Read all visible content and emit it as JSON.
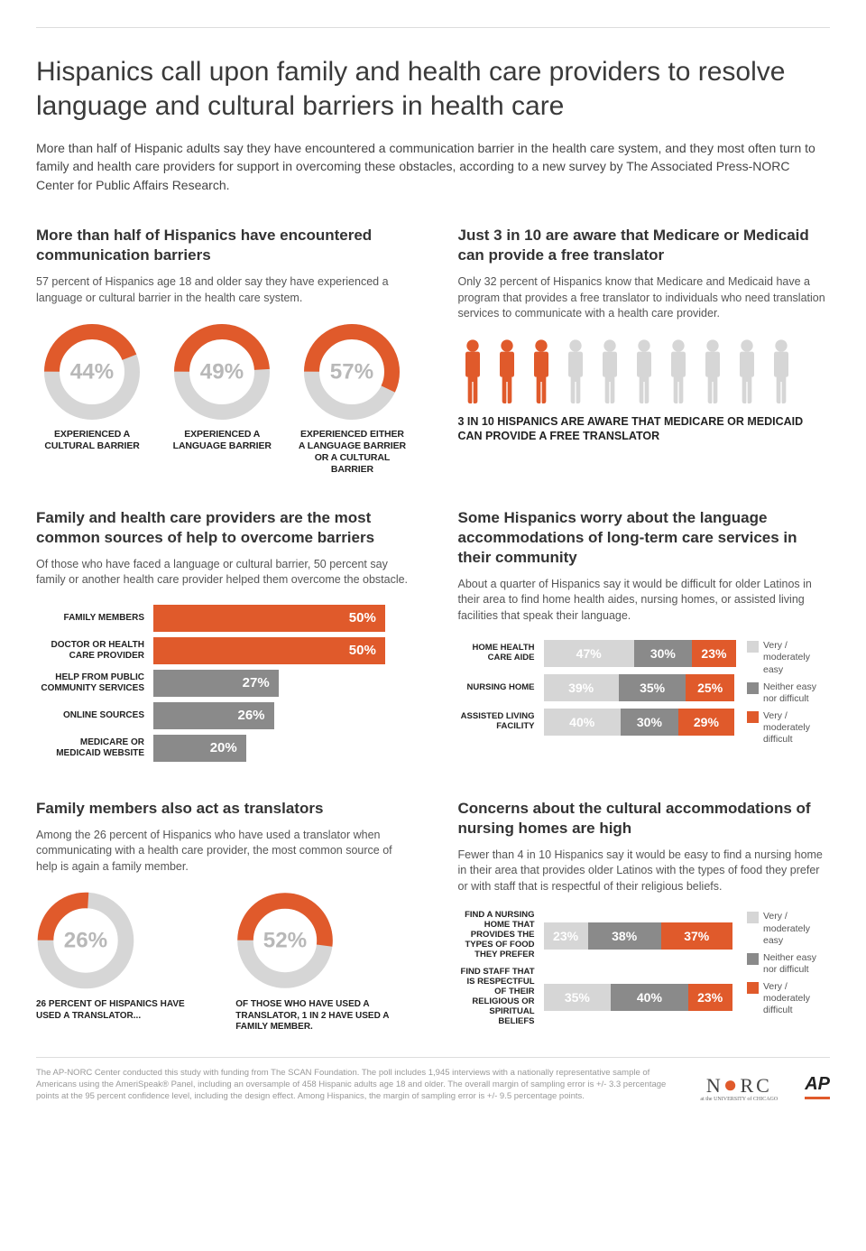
{
  "colors": {
    "orange": "#e05a2b",
    "gray_med": "#8a8a8a",
    "gray_light": "#d6d6d6",
    "donut_bg": "#d6d6d6",
    "text_pct": "#b8b8b8"
  },
  "title": "Hispanics call upon family and health care providers to resolve language and cultural barriers in health care",
  "intro": "More than half of Hispanic adults say they have encountered a communication barrier in the health care system, and they most often turn to family and health care providers for support in overcoming these obstacles, according to a new survey by The Associated Press-NORC Center for Public Affairs Research.",
  "s1": {
    "heading": "More than half of Hispanics have encountered communication barriers",
    "sub": "57 percent of Hispanics age 18 and older say they have experienced a language or cultural barrier in the health care system.",
    "donuts": [
      {
        "pct": 44,
        "label": "Experienced a cultural barrier"
      },
      {
        "pct": 49,
        "label": "Experienced a language barrier"
      },
      {
        "pct": 57,
        "label": "Experienced either a language barrier or a cultural barrier"
      }
    ]
  },
  "s2": {
    "heading": "Just 3 in 10 are aware that Medicare or Medicaid can provide a free translator",
    "sub": "Only 32 percent of Hispanics know that Medicare and Medicaid have a program that provides a free translator to individuals who need translation services to communicate with a health care provider.",
    "highlighted": 3,
    "total": 10,
    "caption": "3 in 10 Hispanics are aware that Medicare or Medicaid can provide a free translator"
  },
  "s3": {
    "heading": "Family and health care providers are the most common sources of help to overcome barriers",
    "sub": "Of those who have faced a language or cultural barrier, 50 percent say family or another health care provider helped them overcome the obstacle.",
    "bars": [
      {
        "label": "Family members",
        "value": 50,
        "color": "#e05a2b"
      },
      {
        "label": "Doctor or health care provider",
        "value": 50,
        "color": "#e05a2b"
      },
      {
        "label": "Help from public community services",
        "value": 27,
        "color": "#8a8a8a"
      },
      {
        "label": "Online sources",
        "value": 26,
        "color": "#8a8a8a"
      },
      {
        "label": "Medicare or Medicaid website",
        "value": 20,
        "color": "#8a8a8a"
      }
    ],
    "max": 55
  },
  "s4": {
    "heading": "Some Hispanics worry about the language accommodations of long-term care services in their community",
    "sub": "About a quarter of Hispanics say it would be difficult for older Latinos in their area to find home health aides, nursing homes, or assisted living facilities that speak their language.",
    "legend": [
      {
        "color": "#d6d6d6",
        "text": "Very / moderately easy"
      },
      {
        "color": "#8a8a8a",
        "text": "Neither easy nor difficult"
      },
      {
        "color": "#e05a2b",
        "text": "Very / moderately difficult"
      }
    ],
    "rows": [
      {
        "label": "Home health care aide",
        "segs": [
          47,
          30,
          23
        ]
      },
      {
        "label": "Nursing home",
        "segs": [
          39,
          35,
          25
        ]
      },
      {
        "label": "Assisted living facility",
        "segs": [
          40,
          30,
          29
        ]
      }
    ]
  },
  "s5": {
    "heading": "Family members also act as translators",
    "sub": "Among the 26 percent of Hispanics who have used a translator when communicating with a health care provider, the most common source of help is again a family member.",
    "items": [
      {
        "pct": 26,
        "size": 130,
        "label": "26 percent of Hispanics have used a translator..."
      },
      {
        "pct": 52,
        "size": 100,
        "label": "Of those who have used a translator, 1 in 2 have used a family member."
      }
    ]
  },
  "s6": {
    "heading": "Concerns about the cultural accommodations of nursing homes are high",
    "sub": "Fewer than 4 in 10 Hispanics say it would be easy to find a nursing home in their area that provides older Latinos with the types of food they prefer or with staff that is respectful of their religious beliefs.",
    "legend": [
      {
        "color": "#d6d6d6",
        "text": "Very / moderately easy"
      },
      {
        "color": "#8a8a8a",
        "text": "Neither easy nor difficult"
      },
      {
        "color": "#e05a2b",
        "text": "Very / moderately difficult"
      }
    ],
    "rows": [
      {
        "label": "Find a nursing home that provides the types of food they prefer",
        "segs": [
          23,
          38,
          37
        ]
      },
      {
        "label": "Find staff that is respectful of their religious or spiritual beliefs",
        "segs": [
          35,
          40,
          23
        ]
      }
    ]
  },
  "footer": {
    "text": "The AP-NORC Center conducted this study with funding from The SCAN Foundation. The poll includes 1,945 interviews with a nationally representative sample of Americans using the AmeriSpeak® Panel, including an oversample of 458 Hispanic adults age 18 and older. The overall margin of sampling error is +/- 3.3 percentage points at the 95 percent confidence level, including the design effect. Among Hispanics, the margin of sampling error is +/- 9.5 percentage points.",
    "norc_sub": "at the UNIVERSITY of CHICAGO",
    "ap": "AP"
  }
}
